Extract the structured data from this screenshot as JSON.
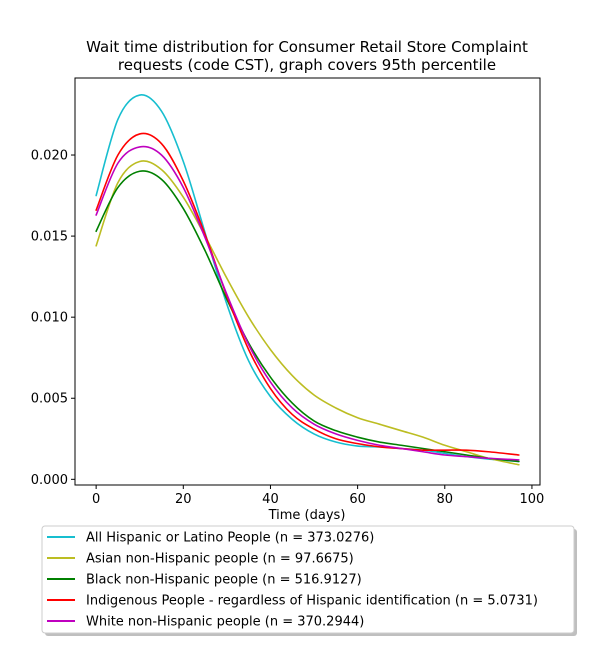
{
  "chart_data": {
    "type": "line",
    "title": "Wait time distribution  for Consumer Retail Store Complaint requests (code CST), graph covers 95th percentile",
    "title_lines": [
      "Wait time distribution  for Consumer Retail Store Complaint",
      "requests (code CST), graph covers 95th percentile"
    ],
    "xlabel": "Time (days)",
    "ylabel": "",
    "xlim": [
      -4.85,
      101.85
    ],
    "ylim": [
      -0.00035,
      0.02475
    ],
    "xticks": [
      0,
      20,
      40,
      60,
      80,
      100
    ],
    "xtick_labels": [
      "0",
      "20",
      "40",
      "60",
      "80",
      "100"
    ],
    "yticks": [
      0.0,
      0.005,
      0.01,
      0.015,
      0.02
    ],
    "ytick_labels": [
      "0.000",
      "0.005",
      "0.010",
      "0.015",
      "0.020"
    ],
    "grid": false,
    "legend_position": "below",
    "series": [
      {
        "name": "All Hispanic or Latino People (n = 373.0276)",
        "color": "#17becf",
        "x": [
          0,
          5,
          10,
          15,
          20,
          25,
          30,
          35,
          40,
          45,
          50,
          55,
          60,
          65,
          70,
          75,
          80,
          85,
          90,
          97
        ],
        "y": [
          0.0175,
          0.0222,
          0.0237,
          0.0227,
          0.0196,
          0.0152,
          0.0108,
          0.0073,
          0.0051,
          0.0037,
          0.0028,
          0.0023,
          0.00205,
          0.002,
          0.0019,
          0.0018,
          0.0016,
          0.0014,
          0.00125,
          0.0011
        ]
      },
      {
        "name": "Asian non-Hispanic people (n = 97.6675)",
        "color": "#bcbd22",
        "x": [
          0,
          5,
          10,
          15,
          20,
          25,
          30,
          35,
          40,
          45,
          50,
          55,
          60,
          65,
          70,
          75,
          80,
          85,
          90,
          97
        ],
        "y": [
          0.0144,
          0.0183,
          0.0196,
          0.0191,
          0.0174,
          0.015,
          0.0124,
          0.01,
          0.008,
          0.0064,
          0.0052,
          0.0044,
          0.0038,
          0.0034,
          0.003,
          0.0026,
          0.0021,
          0.0017,
          0.0013,
          0.0009
        ]
      },
      {
        "name": "Black non-Hispanic people (n = 516.9127)",
        "color": "#008000",
        "x": [
          0,
          5,
          10,
          15,
          20,
          25,
          30,
          35,
          40,
          45,
          50,
          55,
          60,
          65,
          70,
          75,
          80,
          85,
          90,
          97
        ],
        "y": [
          0.0153,
          0.018,
          0.019,
          0.0185,
          0.0167,
          0.0141,
          0.0111,
          0.0084,
          0.0063,
          0.0047,
          0.0036,
          0.003,
          0.0026,
          0.0023,
          0.0021,
          0.0019,
          0.0017,
          0.0015,
          0.0013,
          0.0011
        ]
      },
      {
        "name": "Indigenous People - regardless of Hispanic identification (n = 5.0731)",
        "color": "#ff0000",
        "x": [
          0,
          5,
          10,
          15,
          20,
          25,
          30,
          35,
          40,
          45,
          50,
          55,
          60,
          65,
          70,
          75,
          80,
          85,
          90,
          97
        ],
        "y": [
          0.0166,
          0.02,
          0.0213,
          0.0207,
          0.0184,
          0.0151,
          0.0113,
          0.008,
          0.0056,
          0.004,
          0.0031,
          0.0025,
          0.0022,
          0.002,
          0.0019,
          0.0018,
          0.0018,
          0.0018,
          0.0017,
          0.0015
        ]
      },
      {
        "name": "White non-Hispanic people (n = 370.2944)",
        "color": "#bf00bf",
        "x": [
          0,
          5,
          10,
          15,
          20,
          25,
          30,
          35,
          40,
          45,
          50,
          55,
          60,
          65,
          70,
          75,
          80,
          85,
          90,
          97
        ],
        "y": [
          0.0163,
          0.0195,
          0.0205,
          0.02,
          0.018,
          0.0149,
          0.0114,
          0.0083,
          0.006,
          0.0044,
          0.0034,
          0.0028,
          0.0024,
          0.0021,
          0.0019,
          0.0017,
          0.0015,
          0.0014,
          0.0013,
          0.0012
        ]
      }
    ]
  }
}
